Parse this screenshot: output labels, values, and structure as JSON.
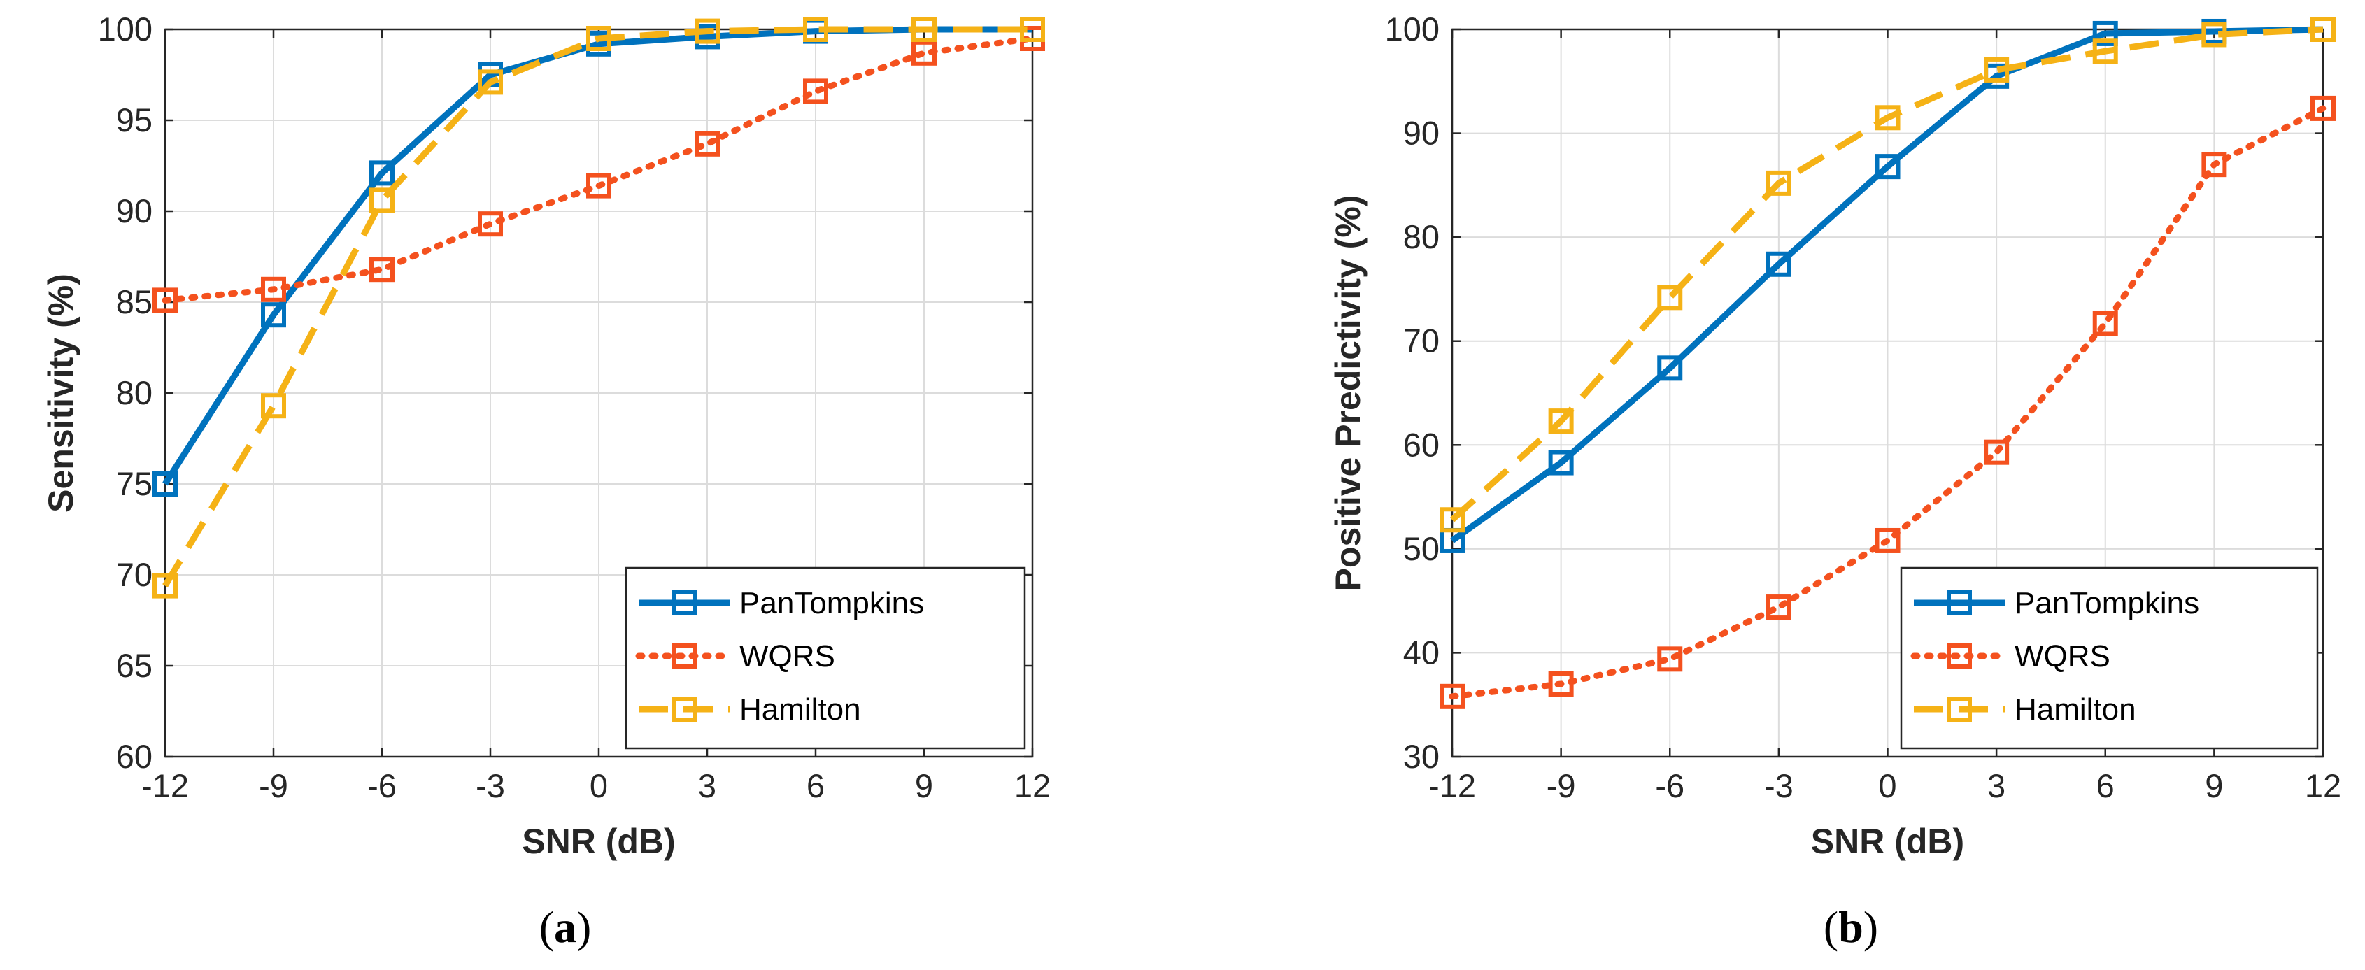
{
  "colors": {
    "pantompkins": "#0072BD",
    "wqrs": "#F4511E",
    "hamilton": "#F5B216"
  },
  "chart_data": [
    {
      "id": "a",
      "type": "line",
      "caption_open": "(",
      "caption_letter": "a",
      "caption_close": ")",
      "title": "",
      "xlabel": "SNR (dB)",
      "ylabel": "Sensitivity (%)",
      "x": [
        -12,
        -9,
        -6,
        -3,
        0,
        3,
        6,
        9,
        12
      ],
      "xlim": [
        -12,
        12
      ],
      "ylim": [
        60,
        100
      ],
      "xticks": [
        -12,
        -9,
        -6,
        -3,
        0,
        3,
        6,
        9,
        12
      ],
      "yticks": [
        60,
        65,
        70,
        75,
        80,
        85,
        90,
        95,
        100
      ],
      "grid": true,
      "legend_position": "bottom-right",
      "series": [
        {
          "name": "PanTompkins",
          "color_key": "pantompkins",
          "style": "solid",
          "values": [
            75.0,
            84.3,
            92.1,
            97.5,
            99.2,
            99.6,
            99.9,
            100.0,
            100.0
          ]
        },
        {
          "name": "WQRS",
          "color_key": "wqrs",
          "style": "dotted",
          "values": [
            85.1,
            85.7,
            86.8,
            89.3,
            91.4,
            93.7,
            96.6,
            98.7,
            99.5
          ]
        },
        {
          "name": "Hamilton",
          "color_key": "hamilton",
          "style": "dashed",
          "values": [
            69.4,
            79.3,
            90.6,
            97.1,
            99.5,
            99.9,
            100.0,
            100.0,
            100.0
          ]
        }
      ]
    },
    {
      "id": "b",
      "type": "line",
      "caption_open": "(",
      "caption_letter": "b",
      "caption_close": ")",
      "title": "",
      "xlabel": "SNR (dB)",
      "ylabel": "Positive Predictivity (%)",
      "x": [
        -12,
        -9,
        -6,
        -3,
        0,
        3,
        6,
        9,
        12
      ],
      "xlim": [
        -12,
        12
      ],
      "ylim": [
        30,
        100
      ],
      "xticks": [
        -12,
        -9,
        -6,
        -3,
        0,
        3,
        6,
        9,
        12
      ],
      "yticks": [
        30,
        40,
        50,
        60,
        70,
        80,
        90,
        100
      ],
      "grid": true,
      "legend_position": "bottom-right",
      "series": [
        {
          "name": "PanTompkins",
          "color_key": "pantompkins",
          "style": "solid",
          "values": [
            50.8,
            58.3,
            67.4,
            77.4,
            86.8,
            95.5,
            99.6,
            99.8,
            100.0
          ]
        },
        {
          "name": "WQRS",
          "color_key": "wqrs",
          "style": "dotted",
          "values": [
            35.8,
            37.0,
            39.4,
            44.4,
            50.8,
            59.3,
            71.7,
            87.0,
            92.4
          ]
        },
        {
          "name": "Hamilton",
          "color_key": "hamilton",
          "style": "dashed",
          "values": [
            52.8,
            62.3,
            74.2,
            85.2,
            91.5,
            96.1,
            97.9,
            99.5,
            100.0
          ]
        }
      ]
    }
  ]
}
